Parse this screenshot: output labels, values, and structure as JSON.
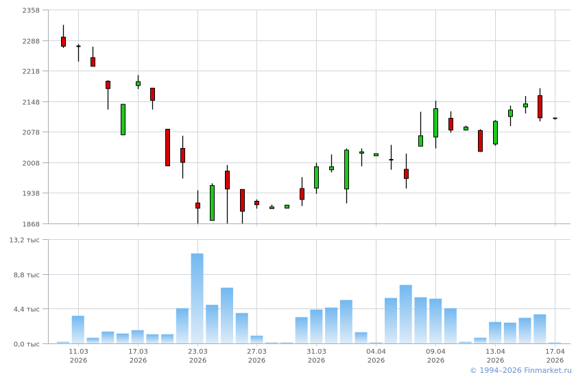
{
  "chart_data": [
    {
      "type": "candlestick",
      "ylim": [
        1868,
        2358
      ],
      "y_ticks": [
        "2358",
        "2288",
        "2218",
        "2148",
        "2078",
        "2008",
        "1938",
        "1868"
      ],
      "y_tick_values": [
        2358,
        2288,
        2218,
        2148,
        2078,
        2008,
        1938,
        1868
      ],
      "grid": true,
      "colors": {
        "up": "#1ec81e",
        "down": "#d40000",
        "neutral": "#000000",
        "grid": "#d0d5da"
      },
      "candles": [
        {
          "o": 2295,
          "h": 2323,
          "l": 2270,
          "c": 2274
        },
        {
          "o": 2274,
          "h": 2279,
          "l": 2239,
          "c": 2274
        },
        {
          "o": 2248,
          "h": 2273,
          "l": 2228,
          "c": 2228
        },
        {
          "o": 2194,
          "h": 2196,
          "l": 2129,
          "c": 2177
        },
        {
          "o": 2071,
          "h": 2142,
          "l": 2071,
          "c": 2141
        },
        {
          "o": 2184,
          "h": 2208,
          "l": 2176,
          "c": 2193
        },
        {
          "o": 2178,
          "h": 2178,
          "l": 2129,
          "c": 2150
        },
        {
          "o": 2084,
          "h": 2084,
          "l": 2000,
          "c": 2000
        },
        {
          "o": 2040,
          "h": 2069,
          "l": 1971,
          "c": 2008
        },
        {
          "o": 1915,
          "h": 1944,
          "l": 1860,
          "c": 1903
        },
        {
          "o": 1875,
          "h": 1960,
          "l": 1875,
          "c": 1955
        },
        {
          "o": 1988,
          "h": 2002,
          "l": 1860,
          "c": 1947
        },
        {
          "o": 1946,
          "h": 1946,
          "l": 1860,
          "c": 1896
        },
        {
          "o": 1919,
          "h": 1923,
          "l": 1902,
          "c": 1911
        },
        {
          "o": 1902,
          "h": 1911,
          "l": 1902,
          "c": 1906
        },
        {
          "o": 1903,
          "h": 1911,
          "l": 1903,
          "c": 1910
        },
        {
          "o": 1948,
          "h": 1974,
          "l": 1908,
          "c": 1923
        },
        {
          "o": 1949,
          "h": 2007,
          "l": 1936,
          "c": 1998
        },
        {
          "o": 1991,
          "h": 2026,
          "l": 1985,
          "c": 1998
        },
        {
          "o": 1947,
          "h": 2040,
          "l": 1914,
          "c": 2036
        },
        {
          "o": 2029,
          "h": 2040,
          "l": 1999,
          "c": 2032
        },
        {
          "o": 2023,
          "h": 2028,
          "l": 2023,
          "c": 2028
        },
        {
          "o": 2014,
          "h": 2048,
          "l": 1991,
          "c": 2014
        },
        {
          "o": 1992,
          "h": 2028,
          "l": 1948,
          "c": 1971
        },
        {
          "o": 2045,
          "h": 2124,
          "l": 2045,
          "c": 2069
        },
        {
          "o": 2066,
          "h": 2149,
          "l": 2040,
          "c": 2131
        },
        {
          "o": 2109,
          "h": 2125,
          "l": 2076,
          "c": 2082
        },
        {
          "o": 2082,
          "h": 2092,
          "l": 2081,
          "c": 2089
        },
        {
          "o": 2081,
          "h": 2084,
          "l": 2032,
          "c": 2033
        },
        {
          "o": 2050,
          "h": 2105,
          "l": 2046,
          "c": 2102
        },
        {
          "o": 2113,
          "h": 2138,
          "l": 2091,
          "c": 2128
        },
        {
          "o": 2135,
          "h": 2160,
          "l": 2120,
          "c": 2142
        },
        {
          "o": 2161,
          "h": 2178,
          "l": 2102,
          "c": 2110
        },
        {
          "o": 2109,
          "h": 2109,
          "l": 2106,
          "c": 2109
        }
      ]
    },
    {
      "type": "bar",
      "ylim": [
        0,
        13.2
      ],
      "y_ticks": [
        "13,2 тыс",
        "8,8 тыс",
        "4,4 тыс",
        "0,0 тыс"
      ],
      "y_tick_values": [
        13.2,
        8.8,
        4.4,
        0
      ],
      "unit": "тыс",
      "grid": true,
      "colors": {
        "bar_top": "#72b8f0",
        "bar_bottom": "#dcebf8"
      },
      "values": [
        0.2,
        3.5,
        0.72,
        1.5,
        1.25,
        1.68,
        1.16,
        1.16,
        4.46,
        11.4,
        4.89,
        7.06,
        3.85,
        0.98,
        0.12,
        0.12,
        3.33,
        4.28,
        4.54,
        5.5,
        1.42,
        0.12,
        5.76,
        7.41,
        5.85,
        5.67,
        4.46,
        0.2,
        0.72,
        2.72,
        2.63,
        3.24,
        3.68,
        0.12
      ]
    }
  ],
  "x_ticks": [
    {
      "index": 1,
      "day": "11.03",
      "year": "2026"
    },
    {
      "index": 5,
      "day": "17.03",
      "year": "2026"
    },
    {
      "index": 9,
      "day": "23.03",
      "year": "2026"
    },
    {
      "index": 13,
      "day": "27.03",
      "year": "2026"
    },
    {
      "index": 17,
      "day": "31.03",
      "year": "2026"
    },
    {
      "index": 21,
      "day": "04.04",
      "year": "2026"
    },
    {
      "index": 25,
      "day": "09.04",
      "year": "2026"
    },
    {
      "index": 29,
      "day": "13.04",
      "year": "2026"
    },
    {
      "index": 33,
      "day": "17.04",
      "year": "2026"
    }
  ],
  "footer": {
    "copyright": "© 1994–2026 Finmarket.ru"
  }
}
